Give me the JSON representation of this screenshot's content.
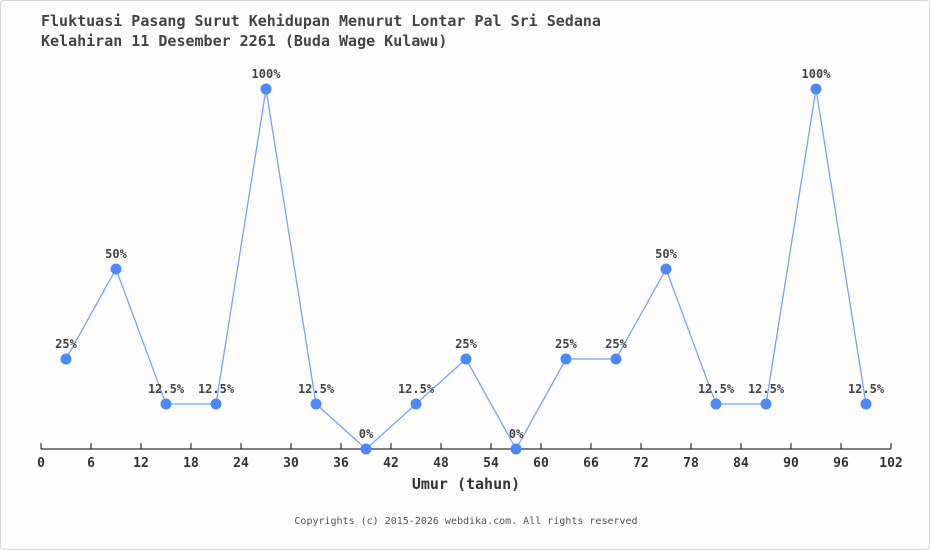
{
  "chart_data": {
    "type": "line",
    "title_line1": "Fluktuasi Pasang Surut Kehidupan Menurut Lontar Pal Sri Sedana",
    "title_line2": "Kelahiran 11 Desember 2261 (Buda Wage Kulawu)",
    "xlabel": "Umur (tahun)",
    "x": [
      3,
      9,
      15,
      21,
      27,
      33,
      39,
      45,
      51,
      57,
      63,
      69,
      75,
      81,
      87,
      93,
      99
    ],
    "values": [
      25,
      50,
      12.5,
      12.5,
      100,
      12.5,
      0,
      12.5,
      25,
      0,
      25,
      25,
      50,
      12.5,
      12.5,
      100,
      12.5
    ],
    "point_labels": [
      "25%",
      "50%",
      "12.5%",
      "12.5%",
      "100%",
      "12.5%",
      "0%",
      "12.5%",
      "25%",
      "0%",
      "25%",
      "25%",
      "50%",
      "12.5%",
      "12.5%",
      "100%",
      "12.5%"
    ],
    "x_ticks": [
      0,
      6,
      12,
      18,
      24,
      30,
      36,
      42,
      48,
      54,
      60,
      66,
      72,
      78,
      84,
      90,
      96,
      102
    ],
    "x_range": [
      0,
      102
    ],
    "ylim": [
      0,
      100
    ],
    "grid": false,
    "legend": "none",
    "line_color": "#76a4fb",
    "marker_color": "#4d89f9",
    "axis_color": "#333333"
  },
  "footer": {
    "copyright": "Copyrights (c) 2015-2026 webdika.com. All rights reserved"
  }
}
